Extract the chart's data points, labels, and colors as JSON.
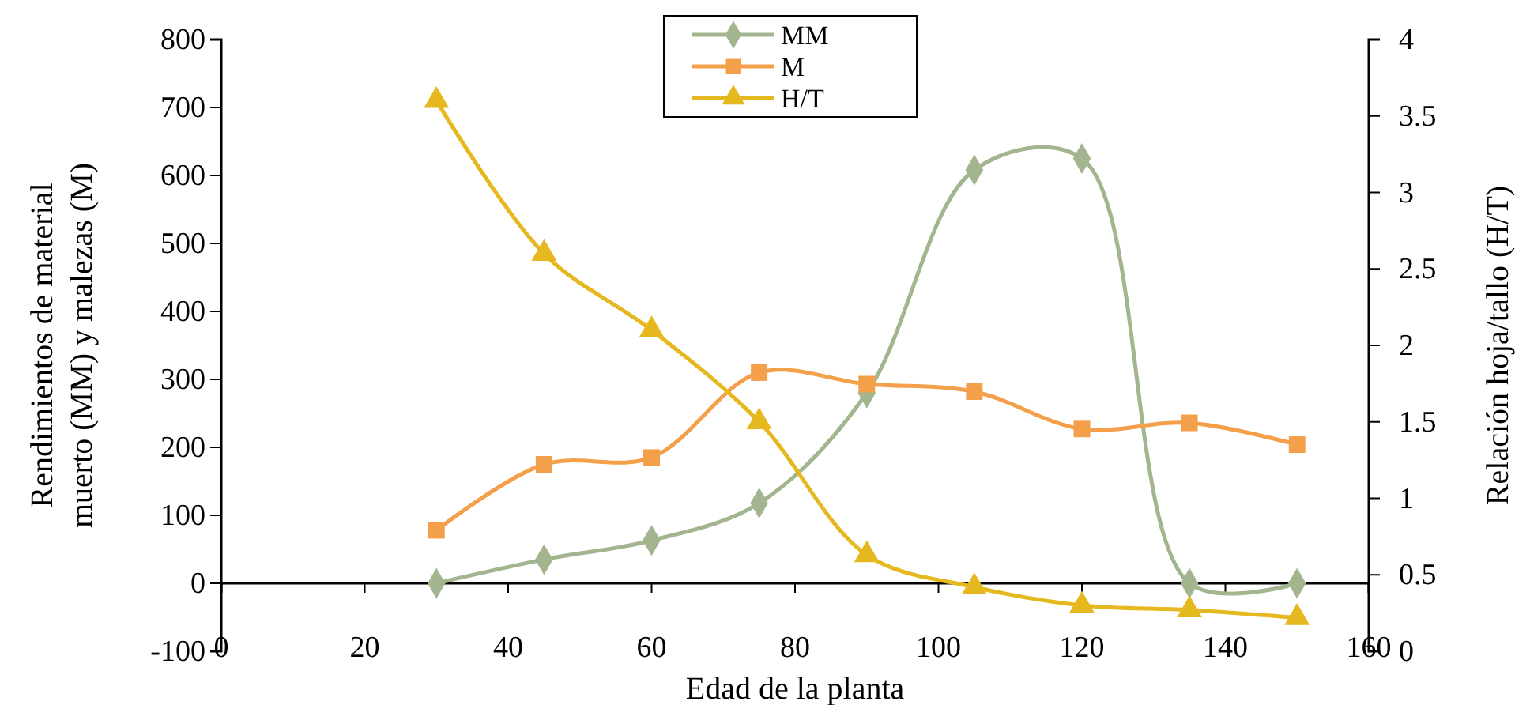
{
  "chart_data": {
    "type": "line",
    "xlabel": "Edad de la planta",
    "ylabel": "Rendimientos de material\nmuerto (MM) y malezas (M)",
    "y2label": "Relación hoja/tallo (H/T)",
    "x": [
      30,
      45,
      60,
      75,
      90,
      105,
      120,
      135,
      150
    ],
    "xlim": [
      0,
      160
    ],
    "xticks": [
      0,
      20,
      40,
      60,
      80,
      100,
      120,
      140,
      160
    ],
    "ylim": [
      -100,
      800
    ],
    "yticks": [
      -100,
      0,
      100,
      200,
      300,
      400,
      500,
      600,
      700,
      800
    ],
    "y2lim": [
      0,
      4
    ],
    "y2ticks": [
      0,
      0.5,
      1,
      1.5,
      2,
      2.5,
      3,
      3.5,
      4
    ],
    "legend": "top",
    "grid": false,
    "series": [
      {
        "name": "MM",
        "color": "#a2b58f",
        "marker": "diamond",
        "values": [
          0,
          35,
          63,
          118,
          280,
          608,
          625,
          0,
          0
        ]
      },
      {
        "name": "M",
        "color": "#f4a04a",
        "marker": "square",
        "values": [
          78,
          175,
          185,
          310,
          293,
          282,
          227,
          236,
          204
        ]
      },
      {
        "name": "H/T",
        "color": "#e6b820",
        "marker": "triangle",
        "axis": "y2",
        "values": [
          3.6,
          2.6,
          2.1,
          1.5,
          0.63,
          0.42,
          0.3,
          0.27,
          0.22
        ]
      }
    ]
  }
}
